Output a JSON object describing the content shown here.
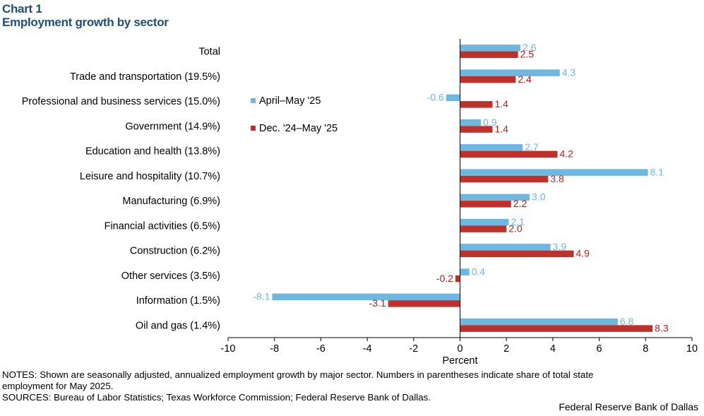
{
  "header": {
    "chart_number": "Chart 1",
    "title": "Employment growth by sector"
  },
  "chart_data": {
    "type": "bar",
    "orientation": "horizontal",
    "categories": [
      "Total",
      "Trade and transportation (19.5%)",
      "Professional and business services (15.0%)",
      "Government (14.9%)",
      "Education and health (13.8%)",
      "Leisure and hospitality (10.7%)",
      "Manufacturing (6.9%)",
      "Financial activities (6.5%)",
      "Construction (6.2%)",
      "Other services (3.5%)",
      "Information (1.5%)",
      "Oil and gas (1.4%)"
    ],
    "series": [
      {
        "name": "April–May '25",
        "color": "#6cb8e0",
        "label_color": "#6cb8e0",
        "values": [
          2.6,
          4.3,
          -0.6,
          0.9,
          2.7,
          8.1,
          3.0,
          2.1,
          3.9,
          0.4,
          -8.1,
          6.8
        ],
        "labels": [
          "2.6",
          "4.3",
          "-0.6",
          "0.9",
          "2.7",
          "8.1",
          "3.0",
          "2.1",
          "3.9",
          "0.4",
          "-8.1",
          "6.8"
        ]
      },
      {
        "name": "Dec. '24–May '25",
        "color": "#c0302b",
        "label_color": "#b2211d",
        "values": [
          2.5,
          2.4,
          1.4,
          1.4,
          4.2,
          3.8,
          2.2,
          2.0,
          4.9,
          -0.2,
          -3.1,
          8.3
        ],
        "labels": [
          "2.5",
          "2.4",
          "1.4",
          "1.4",
          "4.2",
          "3.8",
          "2.2",
          "2.0",
          "4.9",
          "-0.2",
          "-3.1",
          "8.3"
        ]
      }
    ],
    "xlim": [
      -10,
      10
    ],
    "xticks": [
      -10,
      -8,
      -6,
      -4,
      -2,
      0,
      2,
      4,
      6,
      8,
      10
    ],
    "xtick_labels": [
      "-10",
      "-8",
      "-6",
      "-4",
      "-2",
      "0",
      "2",
      "4",
      "6",
      "8",
      "10"
    ],
    "xlabel": "Percent",
    "grid": false,
    "legend_position": "upper-left of plot"
  },
  "footer": {
    "notes_line1": "NOTES: Shown are seasonally adjusted, annualized employment growth by major sector. Numbers in parentheses indicate share of total state",
    "notes_line2": "employment for May 2025.",
    "sources": "SOURCES: Bureau of Labor Statistics; Texas Workforce Commission; Federal Reserve Bank of Dallas.",
    "credit": "Federal Reserve Bank of Dallas"
  }
}
